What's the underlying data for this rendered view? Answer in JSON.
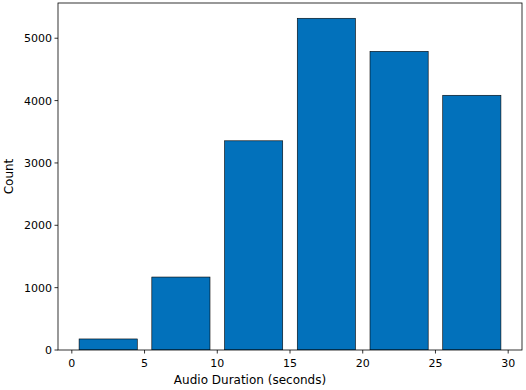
{
  "chart_data": {
    "type": "histogram",
    "x_label": "Audio Duration (seconds)",
    "y_label": "Count",
    "bins": [
      0,
      5,
      10,
      15,
      20,
      25,
      30
    ],
    "values": [
      177,
      1170,
      3355,
      5320,
      4790,
      4085
    ],
    "color": "#0271bb",
    "xlim": [
      -0.95,
      30.95
    ],
    "xticks": [
      0,
      5,
      10,
      15,
      20,
      25,
      30
    ],
    "ylim": [
      0,
      5565
    ],
    "yticks": [
      0,
      1000,
      2000,
      3000,
      4000,
      5000
    ],
    "grid": false
  }
}
